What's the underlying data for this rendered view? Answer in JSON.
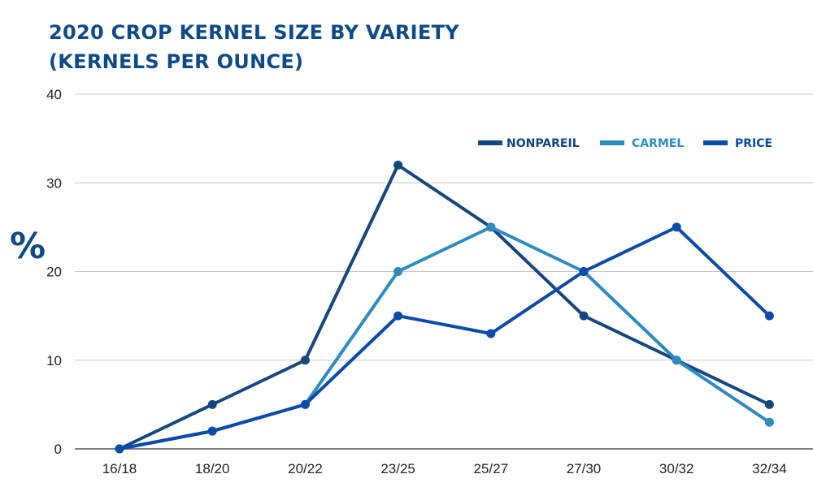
{
  "chart_data": {
    "type": "line",
    "title": [
      "2020 CROP KERNEL SIZE BY VARIETY",
      "(KERNELS PER OUNCE)"
    ],
    "ylabel": "%",
    "xlabel": "",
    "categories": [
      "16/18",
      "18/20",
      "20/22",
      "23/25",
      "25/27",
      "27/30",
      "30/32",
      "32/34"
    ],
    "yticks": [
      0,
      10,
      20,
      30,
      40
    ],
    "ylim": [
      0,
      40
    ],
    "grid": true,
    "legend_position": "top-right",
    "series": [
      {
        "name": "NONPAREIL",
        "color": "#14467f",
        "values": [
          0,
          5,
          10,
          32,
          25,
          15,
          10,
          5
        ]
      },
      {
        "name": "CARMEL",
        "color": "#2e8bc0",
        "values": [
          0,
          2,
          5,
          20,
          25,
          20,
          10,
          3
        ]
      },
      {
        "name": "PRICE",
        "color": "#0a4aa8",
        "values": [
          0,
          2,
          5,
          15,
          13,
          20,
          25,
          15
        ]
      }
    ]
  }
}
